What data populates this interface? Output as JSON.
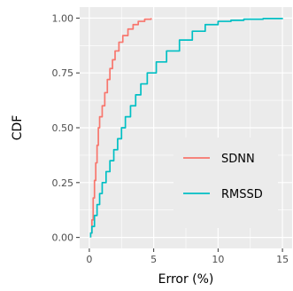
{
  "chart_data": {
    "type": "line",
    "subtype": "ecdf",
    "xlabel": "Error (%)",
    "ylabel": "CDF",
    "xlim": [
      -0.75,
      15.75
    ],
    "ylim": [
      -0.05,
      1.05
    ],
    "x_ticks": [
      0,
      5,
      10,
      15
    ],
    "y_ticks": [
      0.0,
      0.25,
      0.5,
      0.75,
      1.0
    ],
    "x_tick_labels": [
      "0",
      "5",
      "10",
      "15"
    ],
    "y_tick_labels": [
      "0.00",
      "0.25",
      "0.50",
      "0.75",
      "1.00"
    ],
    "grid": true,
    "background": "#ebebeb",
    "legend": {
      "position": "bottom-right-inside"
    },
    "series": [
      {
        "name": "SDNN",
        "color": "#F8766D",
        "points": [
          [
            0.1,
            0.02
          ],
          [
            0.2,
            0.08
          ],
          [
            0.3,
            0.18
          ],
          [
            0.4,
            0.26
          ],
          [
            0.5,
            0.34
          ],
          [
            0.6,
            0.42
          ],
          [
            0.7,
            0.5
          ],
          [
            0.8,
            0.55
          ],
          [
            1.0,
            0.6
          ],
          [
            1.2,
            0.66
          ],
          [
            1.4,
            0.72
          ],
          [
            1.6,
            0.77
          ],
          [
            1.8,
            0.81
          ],
          [
            2.0,
            0.85
          ],
          [
            2.3,
            0.89
          ],
          [
            2.6,
            0.92
          ],
          [
            3.0,
            0.95
          ],
          [
            3.4,
            0.97
          ],
          [
            3.8,
            0.985
          ],
          [
            4.3,
            0.995
          ],
          [
            4.8,
            1.0
          ]
        ]
      },
      {
        "name": "RMSSD",
        "color": "#00BFC4",
        "points": [
          [
            0.1,
            0.02
          ],
          [
            0.2,
            0.05
          ],
          [
            0.4,
            0.1
          ],
          [
            0.6,
            0.15
          ],
          [
            0.8,
            0.2
          ],
          [
            1.0,
            0.25
          ],
          [
            1.3,
            0.3
          ],
          [
            1.6,
            0.35
          ],
          [
            1.9,
            0.4
          ],
          [
            2.2,
            0.45
          ],
          [
            2.5,
            0.5
          ],
          [
            2.8,
            0.55
          ],
          [
            3.2,
            0.6
          ],
          [
            3.6,
            0.65
          ],
          [
            4.0,
            0.7
          ],
          [
            4.5,
            0.75
          ],
          [
            5.2,
            0.8
          ],
          [
            6.0,
            0.85
          ],
          [
            7.0,
            0.9
          ],
          [
            8.0,
            0.94
          ],
          [
            9.0,
            0.97
          ],
          [
            10.0,
            0.985
          ],
          [
            11.0,
            0.99
          ],
          [
            12.0,
            0.995
          ],
          [
            13.5,
            0.998
          ],
          [
            15.0,
            1.0
          ]
        ]
      }
    ]
  }
}
